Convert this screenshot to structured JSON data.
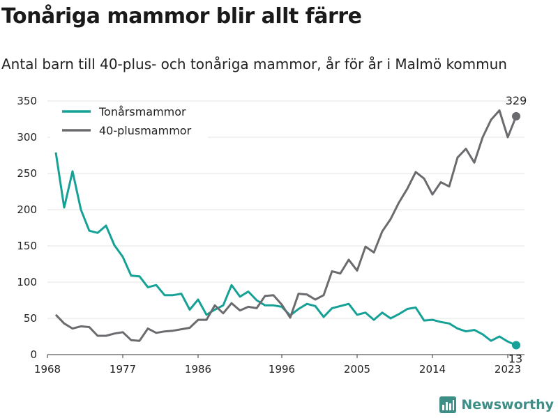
{
  "title": "Tonåriga mammor blir allt färre",
  "subtitle": "Antal barn till 40-plus- och tonåriga mammor, år för år i Malmö kommun",
  "brand": {
    "name": "Newsworthy",
    "color": "#3c8e87",
    "icon": "bar-chart-logo-icon"
  },
  "chart_data": {
    "type": "line",
    "x": [
      1969,
      1970,
      1971,
      1972,
      1973,
      1974,
      1975,
      1976,
      1977,
      1978,
      1979,
      1980,
      1981,
      1982,
      1983,
      1984,
      1985,
      1986,
      1987,
      1988,
      1989,
      1990,
      1991,
      1992,
      1993,
      1994,
      1995,
      1996,
      1997,
      1998,
      1999,
      2000,
      2001,
      2002,
      2003,
      2004,
      2005,
      2006,
      2007,
      2008,
      2009,
      2010,
      2011,
      2012,
      2013,
      2014,
      2015,
      2016,
      2017,
      2018,
      2019,
      2020,
      2021,
      2022,
      2023,
      2024
    ],
    "series": [
      {
        "name": "Tonårsmammor",
        "color": "#15a196",
        "values": [
          279,
          203,
          253,
          200,
          171,
          168,
          178,
          151,
          135,
          109,
          108,
          93,
          96,
          82,
          82,
          84,
          62,
          76,
          55,
          62,
          68,
          96,
          80,
          87,
          75,
          68,
          68,
          66,
          54,
          63,
          70,
          67,
          52,
          64,
          67,
          70,
          55,
          58,
          48,
          58,
          50,
          56,
          63,
          65,
          47,
          48,
          45,
          43,
          36,
          32,
          34,
          28,
          19,
          25,
          18,
          13
        ]
      },
      {
        "name": "40-plusmammor",
        "color": "#6b6b6f",
        "values": [
          55,
          43,
          36,
          39,
          38,
          26,
          26,
          29,
          31,
          20,
          19,
          36,
          30,
          32,
          33,
          35,
          37,
          48,
          48,
          68,
          57,
          71,
          61,
          66,
          64,
          81,
          82,
          69,
          51,
          84,
          83,
          76,
          82,
          115,
          112,
          131,
          116,
          149,
          141,
          170,
          187,
          210,
          229,
          252,
          243,
          221,
          238,
          232,
          272,
          284,
          265,
          300,
          324,
          337,
          300,
          329
        ]
      }
    ],
    "end_labels": {
      "Tonårsmammor": "13",
      "40-plusmammor": "329"
    },
    "xticks": [
      1968,
      1977,
      1986,
      1996,
      2005,
      2014,
      2023
    ],
    "yticks": [
      0,
      50,
      100,
      150,
      200,
      250,
      300,
      350
    ],
    "xlim": [
      1968,
      2025
    ],
    "ylim": [
      0,
      350
    ],
    "grid": "horizontal",
    "legend_position": "top-left"
  }
}
